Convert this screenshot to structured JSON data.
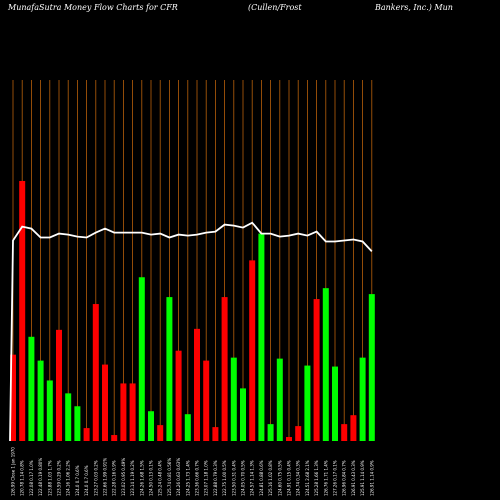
{
  "title": {
    "left": "MunafaSutra  Money Flow  Charts for CFR",
    "middle": "(Cullen/Frost",
    "right": "Bankers,  Inc.) Mun"
  },
  "colors": {
    "background": "#000000",
    "gridline": "#b8600a",
    "up": "#00ff00",
    "down": "#ff0000",
    "line": "#ffffff",
    "text": "#ffffff"
  },
  "chart_data": {
    "type": "bar",
    "title": "MunafaSutra  Money Flow  Charts for CFR",
    "bars": [
      {
        "label": "126.99 Close 1 Jan 1970",
        "value": 87,
        "color": "down"
      },
      {
        "label": "120.78 1.14 0.8%",
        "value": 262,
        "color": "down"
      },
      {
        "label": "122.08 0.17 1.0%",
        "value": 105,
        "color": "up"
      },
      {
        "label": "122.48 0.19 0.80%",
        "value": 81,
        "color": "up"
      },
      {
        "label": "123.88 1.03 1.7%",
        "value": 61,
        "color": "up"
      },
      {
        "label": "123.59 0.29 0.2%",
        "value": 112,
        "color": "down"
      },
      {
        "label": "124.16 1.06 2.2%",
        "value": 48,
        "color": "up"
      },
      {
        "label": "124.0 0.7 0.6%",
        "value": 35,
        "color": "up"
      },
      {
        "label": "124.0 0.7 0.6%",
        "value": 13,
        "color": "down"
      },
      {
        "label": "123.27 0.03 0.2%",
        "value": 138,
        "color": "down"
      },
      {
        "label": "122.66 1.99 0.91%",
        "value": 77,
        "color": "down"
      },
      {
        "label": "122.28 0.16 0.9%",
        "value": 6,
        "color": "down"
      },
      {
        "label": "123.02 0.95 0.49%",
        "value": 58,
        "color": "down"
      },
      {
        "label": "123.14 1.19 0.2%",
        "value": 58,
        "color": "down"
      },
      {
        "label": "124.26 1.68 1.5%",
        "value": 165,
        "color": "up"
      },
      {
        "label": "124.50 0.13 0.1%",
        "value": 30,
        "color": "up"
      },
      {
        "label": "125.24 0.48 0.4%",
        "value": 16,
        "color": "down"
      },
      {
        "label": "125.74 0.81 0.56%",
        "value": 145,
        "color": "up"
      },
      {
        "label": "124.26 0.63 0.63%",
        "value": 91,
        "color": "down"
      },
      {
        "label": "124.25 1.73 1.4%",
        "value": 27,
        "color": "up"
      },
      {
        "label": "123.36 0.66 0.7%",
        "value": 113,
        "color": "down"
      },
      {
        "label": "123.07 1.18 1.0%",
        "value": 81,
        "color": "down"
      },
      {
        "label": "122.88 0.79 0.3%",
        "value": 14,
        "color": "down"
      },
      {
        "label": "122.75 1.00 0.5%",
        "value": 145,
        "color": "down"
      },
      {
        "label": "123.50 0.31 0.4%",
        "value": 84,
        "color": "up"
      },
      {
        "label": "124.05 0.70 0.5%",
        "value": 53,
        "color": "up"
      },
      {
        "label": "124.57 1.14 1.3%",
        "value": 182,
        "color": "down"
      },
      {
        "label": "124.81 0.88 0.6%",
        "value": 209,
        "color": "up"
      },
      {
        "label": "125.16 1.02 0.8%",
        "value": 17,
        "color": "up"
      },
      {
        "label": "124.60 0.75 0.5%",
        "value": 83,
        "color": "up"
      },
      {
        "label": "124.91 0.15 0.4%",
        "value": 4,
        "color": "down"
      },
      {
        "label": "124.74 0.34 0.3%",
        "value": 15,
        "color": "down"
      },
      {
        "label": "124.51 2.68 2.1%",
        "value": 76,
        "color": "up"
      },
      {
        "label": "125.28 1.66 1.3%",
        "value": 143,
        "color": "down"
      },
      {
        "label": "126.76 1.71 1.4%",
        "value": 154,
        "color": "up"
      },
      {
        "label": "127.26 0.17 0.1%",
        "value": 75,
        "color": "up"
      },
      {
        "label": "126.96 0.84 0.7%",
        "value": 17,
        "color": "down"
      },
      {
        "label": "126.91 0.43 0.3%",
        "value": 26,
        "color": "down"
      },
      {
        "label": "125.91 1.14 0.9%",
        "value": 84,
        "color": "up"
      },
      {
        "label": "126.91 1.14 0.9%",
        "value": 148,
        "color": "up"
      }
    ],
    "line": [
      202,
      216,
      214,
      205,
      205,
      209,
      208,
      206,
      205,
      210,
      214,
      210,
      210,
      210,
      210,
      208,
      209,
      205,
      208,
      207,
      208,
      210,
      211,
      218,
      217,
      215,
      220,
      209,
      209,
      206,
      207,
      209,
      207,
      211,
      201,
      201,
      202,
      203,
      201,
      191
    ],
    "ylim": [
      0,
      265
    ]
  }
}
